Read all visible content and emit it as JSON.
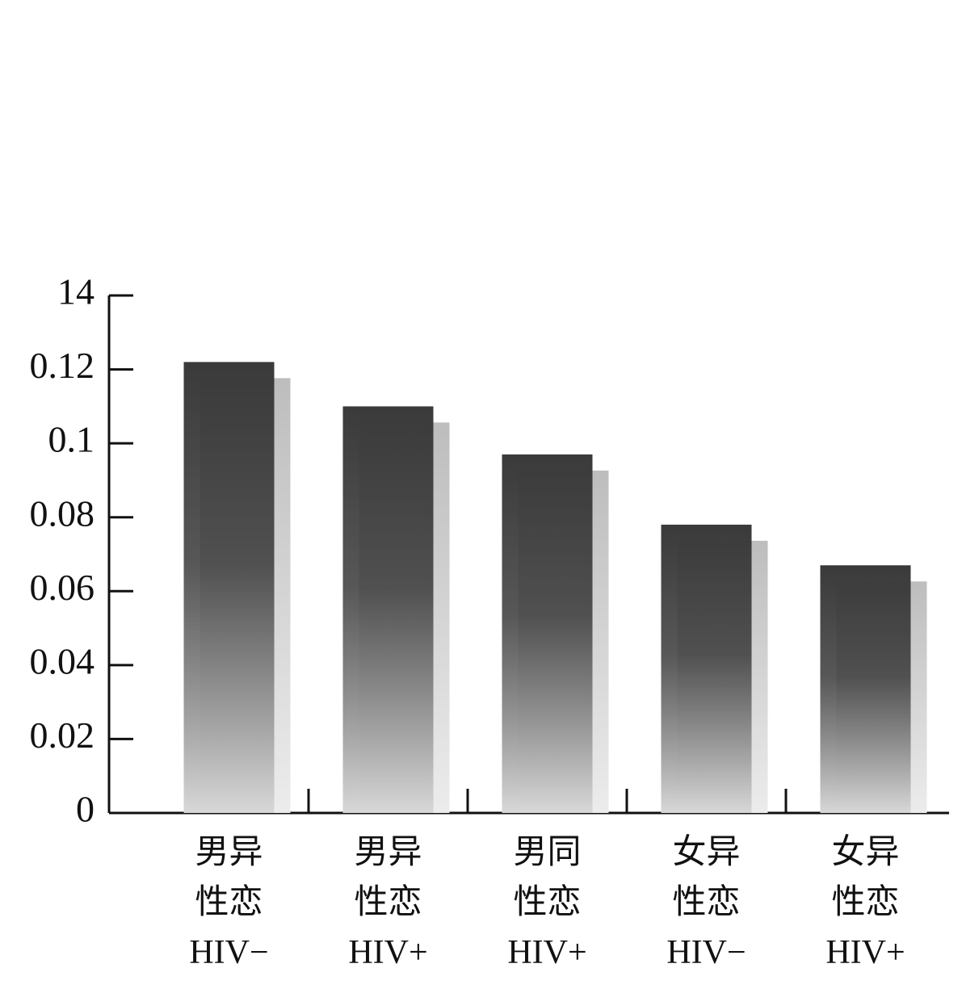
{
  "chart_data": {
    "type": "bar",
    "categories": [
      "男异\n性恋\nHIV−",
      "男异\n性恋\nHIV+",
      "男同\n性恋\nHIV+",
      "女异\n性恋\nHIV−",
      "女异\n性恋\nHIV+"
    ],
    "values": [
      0.122,
      0.11,
      0.097,
      0.078,
      0.067
    ],
    "color": "#3a3a3a",
    "ylim": [
      0,
      0.14
    ],
    "yticks": [
      0,
      0.02,
      0.04,
      0.06,
      0.08,
      0.1,
      0.12,
      {
        "value": 0.14,
        "label": "14"
      }
    ],
    "grid": false
  }
}
